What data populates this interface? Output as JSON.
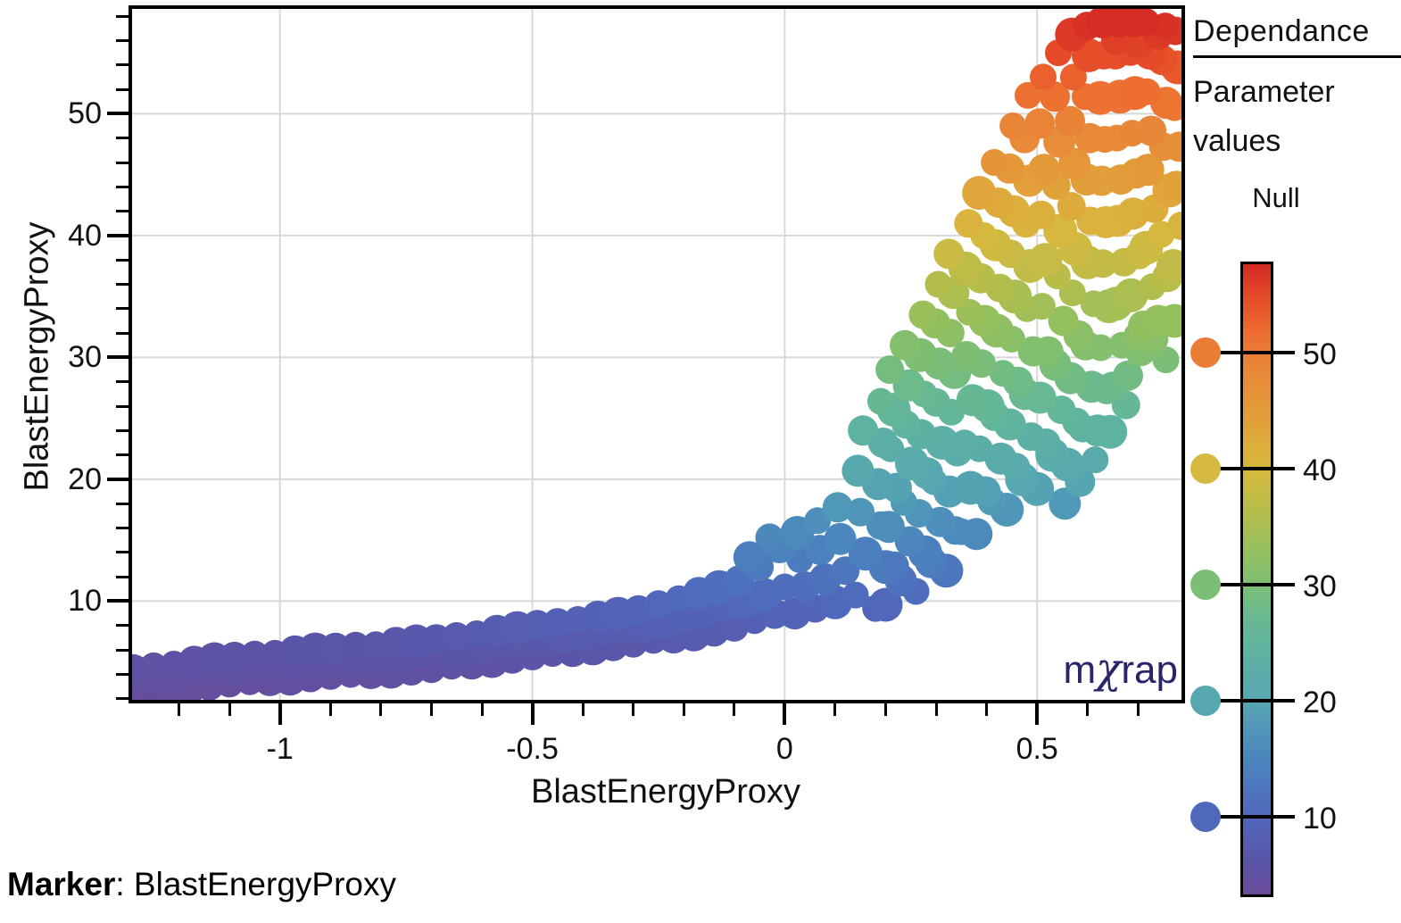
{
  "chart_data": {
    "type": "scatter",
    "title": "",
    "xlabel": "BlastEnergyProxy",
    "ylabel": "BlastEnergyProxy",
    "xlim": [
      -1.293,
      0.786
    ],
    "ylim": [
      1.9,
      58.6
    ],
    "grid": true,
    "grid_color": "#d8d8d8",
    "x_tick_values": [
      -1,
      -0.5,
      0,
      0.5
    ],
    "x_tick_labels": [
      "-1",
      "-0.5",
      "0",
      "0.5"
    ],
    "x_minor_step": 0.1,
    "x_minor_range": [
      -1.2,
      0.7
    ],
    "y_tick_values": [
      10,
      20,
      30,
      40,
      50
    ],
    "y_tick_labels": [
      "10",
      "20",
      "30",
      "40",
      "50"
    ],
    "y_minor_step": 2,
    "y_minor_range": [
      2,
      58
    ],
    "color_by": "y",
    "marker_radius": 17,
    "colormap": [
      [
        2,
        "#6a4b9a"
      ],
      [
        6,
        "#5a55a8"
      ],
      [
        10,
        "#5068bc"
      ],
      [
        14,
        "#4b80be"
      ],
      [
        17,
        "#4e93ba"
      ],
      [
        20,
        "#57a7b1"
      ],
      [
        24,
        "#5db2a2"
      ],
      [
        27,
        "#68b992"
      ],
      [
        30,
        "#7cbe74"
      ],
      [
        33,
        "#95c05e"
      ],
      [
        36,
        "#b3bd4b"
      ],
      [
        40,
        "#d6b93f"
      ],
      [
        43,
        "#dfa83b"
      ],
      [
        46,
        "#e59539"
      ],
      [
        49,
        "#e98537"
      ],
      [
        52,
        "#ed6c2f"
      ],
      [
        55,
        "#e54b29"
      ],
      [
        58,
        "#d32823"
      ]
    ],
    "points": [
      [
        -1.3,
        2.3
      ],
      [
        -1.28,
        3.5
      ],
      [
        -1.29,
        4.4
      ],
      [
        -1.26,
        2.55
      ],
      [
        -1.24,
        3.65
      ],
      [
        -1.25,
        4.62
      ],
      [
        -1.22,
        2.72
      ],
      [
        -1.2,
        3.74
      ],
      [
        -1.21,
        4.83
      ],
      [
        -1.18,
        2.92
      ],
      [
        -1.16,
        4.02
      ],
      [
        -1.17,
        5.02
      ],
      [
        -1.14,
        3.08
      ],
      [
        -1.12,
        4.21
      ],
      [
        -1.13,
        5.23
      ],
      [
        -1.1,
        3.27
      ],
      [
        -1.08,
        4.3
      ],
      [
        -1.09,
        5.42
      ],
      [
        -1.06,
        3.38
      ],
      [
        -1.04,
        4.52
      ],
      [
        -1.05,
        5.58
      ],
      [
        -1.02,
        3.52
      ],
      [
        -1.0,
        4.66
      ],
      [
        -1.01,
        5.72
      ],
      [
        -0.98,
        3.64
      ],
      [
        -0.96,
        4.8
      ],
      [
        -0.97,
        5.88
      ],
      [
        -0.94,
        3.77
      ],
      [
        -0.92,
        4.94
      ],
      [
        -0.93,
        6.03
      ],
      [
        -0.9,
        3.89
      ],
      [
        -0.88,
        5.07
      ],
      [
        -0.89,
        6.17
      ],
      [
        -0.86,
        3.99
      ],
      [
        -0.84,
        5.19
      ],
      [
        -0.85,
        6.31
      ],
      [
        -0.82,
        4.1
      ],
      [
        -0.8,
        5.31
      ],
      [
        -0.81,
        6.43
      ],
      [
        -0.78,
        4.21
      ],
      [
        -0.76,
        5.43
      ],
      [
        -0.77,
        6.57
      ],
      [
        -0.74,
        4.32
      ],
      [
        -0.72,
        5.55
      ],
      [
        -0.73,
        6.7
      ],
      [
        -0.7,
        4.45
      ],
      [
        -0.68,
        5.7
      ],
      [
        -0.69,
        6.87
      ],
      [
        -0.66,
        4.66
      ],
      [
        -0.64,
        5.92
      ],
      [
        -0.65,
        7.1
      ],
      [
        -0.62,
        4.88
      ],
      [
        -0.6,
        6.14
      ],
      [
        -0.61,
        7.32
      ],
      [
        -0.58,
        5.08
      ],
      [
        -0.56,
        6.36
      ],
      [
        -0.57,
        7.56
      ],
      [
        -0.54,
        5.29
      ],
      [
        -0.52,
        6.58
      ],
      [
        -0.53,
        7.79
      ],
      [
        -0.5,
        5.49
      ],
      [
        -0.48,
        6.8
      ],
      [
        -0.49,
        8.03
      ],
      [
        -0.46,
        5.71
      ],
      [
        -0.44,
        7.02
      ],
      [
        -0.45,
        8.26
      ],
      [
        -0.42,
        5.91
      ],
      [
        -0.4,
        7.24
      ],
      [
        -0.41,
        8.49
      ],
      [
        -0.38,
        6.12
      ],
      [
        -0.36,
        7.46
      ],
      [
        -0.37,
        8.72
      ],
      [
        -0.34,
        6.32
      ],
      [
        -0.32,
        7.68
      ],
      [
        -0.33,
        8.96
      ],
      [
        -0.3,
        6.54
      ],
      [
        -0.28,
        7.93
      ],
      [
        -0.29,
        9.24
      ],
      [
        -0.26,
        6.78
      ],
      [
        -0.24,
        8.29
      ],
      [
        -0.25,
        9.72
      ],
      [
        -0.22,
        7.02
      ],
      [
        -0.2,
        8.65
      ],
      [
        -0.21,
        10.2
      ],
      [
        -0.18,
        7.27
      ],
      [
        -0.16,
        9.01
      ],
      [
        -0.17,
        10.67
      ],
      [
        -0.14,
        7.51
      ],
      [
        -0.12,
        9.37
      ],
      [
        -0.13,
        11.15
      ],
      [
        -0.1,
        7.84
      ],
      [
        -0.08,
        9.81
      ],
      [
        -0.09,
        11.7
      ],
      [
        -0.06,
        8.4
      ],
      [
        -0.04,
        10.49
      ],
      [
        -0.05,
        12.8
      ],
      [
        -0.07,
        13.6
      ],
      [
        -0.02,
        8.96
      ],
      [
        0.0,
        11.17
      ],
      [
        -0.01,
        14.5
      ],
      [
        -0.03,
        15.2
      ],
      [
        0.02,
        9.0
      ],
      [
        0.04,
        11.2
      ],
      [
        0.03,
        13.4
      ],
      [
        0.025,
        15.6
      ],
      [
        0.06,
        9.4
      ],
      [
        0.08,
        11.8
      ],
      [
        0.07,
        14.2
      ],
      [
        0.065,
        16.6
      ],
      [
        0.1,
        9.9
      ],
      [
        0.12,
        12.5
      ],
      [
        0.11,
        15.1
      ],
      [
        0.105,
        17.7
      ],
      [
        0.14,
        10.5
      ],
      [
        0.16,
        13.9
      ],
      [
        0.15,
        17.3
      ],
      [
        0.145,
        20.7
      ],
      [
        0.155,
        24.0
      ],
      [
        0.18,
        9.4
      ],
      [
        0.2,
        12.8
      ],
      [
        0.19,
        16.2
      ],
      [
        0.185,
        19.6
      ],
      [
        0.195,
        23.0
      ],
      [
        0.19,
        26.4
      ],
      [
        0.2,
        9.7
      ],
      [
        0.218,
        12.9
      ],
      [
        0.206,
        16.1
      ],
      [
        0.222,
        19.3
      ],
      [
        0.21,
        22.5
      ],
      [
        0.216,
        25.7
      ],
      [
        0.208,
        29.0
      ],
      [
        0.23,
        11.7
      ],
      [
        0.248,
        14.9
      ],
      [
        0.236,
        18.1
      ],
      [
        0.252,
        21.3
      ],
      [
        0.24,
        24.5
      ],
      [
        0.246,
        27.7
      ],
      [
        0.238,
        31.0
      ],
      [
        0.26,
        10.8
      ],
      [
        0.278,
        14.0
      ],
      [
        0.266,
        17.2
      ],
      [
        0.282,
        20.5
      ],
      [
        0.27,
        23.7
      ],
      [
        0.276,
        27.0
      ],
      [
        0.268,
        30.2
      ],
      [
        0.274,
        33.5
      ],
      [
        0.29,
        13.2
      ],
      [
        0.308,
        16.5
      ],
      [
        0.296,
        19.8
      ],
      [
        0.312,
        23.0
      ],
      [
        0.3,
        26.3
      ],
      [
        0.306,
        29.5
      ],
      [
        0.298,
        32.8
      ],
      [
        0.304,
        36.0
      ],
      [
        0.32,
        12.5
      ],
      [
        0.338,
        15.8
      ],
      [
        0.326,
        19.0
      ],
      [
        0.342,
        22.3
      ],
      [
        0.33,
        25.5
      ],
      [
        0.336,
        28.8
      ],
      [
        0.328,
        32.0
      ],
      [
        0.334,
        35.3
      ],
      [
        0.325,
        38.5
      ],
      [
        0.35,
        15.7
      ],
      [
        0.368,
        19.3
      ],
      [
        0.356,
        22.9
      ],
      [
        0.372,
        26.5
      ],
      [
        0.36,
        30.1
      ],
      [
        0.366,
        33.7
      ],
      [
        0.358,
        37.3
      ],
      [
        0.364,
        41.0
      ],
      [
        0.38,
        15.5
      ],
      [
        0.398,
        19.0
      ],
      [
        0.386,
        22.5
      ],
      [
        0.402,
        26.0
      ],
      [
        0.39,
        29.5
      ],
      [
        0.396,
        33.0
      ],
      [
        0.388,
        36.5
      ],
      [
        0.394,
        40.0
      ],
      [
        0.385,
        43.5
      ],
      [
        0.41,
        18.2
      ],
      [
        0.428,
        21.7
      ],
      [
        0.416,
        25.2
      ],
      [
        0.432,
        28.7
      ],
      [
        0.42,
        32.2
      ],
      [
        0.426,
        35.7
      ],
      [
        0.418,
        39.2
      ],
      [
        0.424,
        42.7
      ],
      [
        0.415,
        46.0
      ],
      [
        0.44,
        17.5
      ],
      [
        0.458,
        21.0
      ],
      [
        0.446,
        24.5
      ],
      [
        0.462,
        28.0
      ],
      [
        0.45,
        31.5
      ],
      [
        0.456,
        35.0
      ],
      [
        0.448,
        38.5
      ],
      [
        0.454,
        42.0
      ],
      [
        0.445,
        45.5
      ],
      [
        0.452,
        49.0
      ],
      [
        0.47,
        20.0
      ],
      [
        0.488,
        23.5
      ],
      [
        0.476,
        27.0
      ],
      [
        0.492,
        30.5
      ],
      [
        0.48,
        34.0
      ],
      [
        0.486,
        37.5
      ],
      [
        0.478,
        41.0
      ],
      [
        0.484,
        44.5
      ],
      [
        0.475,
        48.0
      ],
      [
        0.482,
        51.5
      ],
      [
        0.5,
        19.2
      ],
      [
        0.518,
        23.0
      ],
      [
        0.506,
        26.7
      ],
      [
        0.522,
        30.5
      ],
      [
        0.51,
        34.2
      ],
      [
        0.516,
        38.0
      ],
      [
        0.508,
        41.7
      ],
      [
        0.514,
        45.4
      ],
      [
        0.505,
        49.2
      ],
      [
        0.512,
        53.0
      ],
      [
        0.53,
        22.0
      ],
      [
        0.548,
        25.7
      ],
      [
        0.536,
        29.4
      ],
      [
        0.552,
        33.0
      ],
      [
        0.54,
        36.7
      ],
      [
        0.546,
        40.4
      ],
      [
        0.538,
        44.1
      ],
      [
        0.544,
        47.7
      ],
      [
        0.535,
        51.4
      ],
      [
        0.542,
        55.0
      ],
      [
        0.56,
        21.2
      ],
      [
        0.578,
        24.7
      ],
      [
        0.566,
        28.3
      ],
      [
        0.582,
        31.8
      ],
      [
        0.57,
        35.3
      ],
      [
        0.576,
        38.9
      ],
      [
        0.568,
        42.4
      ],
      [
        0.574,
        45.9
      ],
      [
        0.565,
        49.4
      ],
      [
        0.572,
        53.0
      ],
      [
        0.569,
        56.5
      ],
      [
        0.59,
        24.2
      ],
      [
        0.608,
        27.6
      ],
      [
        0.596,
        31.0
      ],
      [
        0.612,
        34.4
      ],
      [
        0.6,
        37.8
      ],
      [
        0.606,
        41.2
      ],
      [
        0.598,
        44.6
      ],
      [
        0.604,
        48.0
      ],
      [
        0.595,
        51.4
      ],
      [
        0.602,
        54.8
      ],
      [
        0.599,
        57.2
      ],
      [
        0.62,
        24.0
      ],
      [
        0.638,
        27.4
      ],
      [
        0.626,
        30.8
      ],
      [
        0.642,
        34.2
      ],
      [
        0.63,
        37.7
      ],
      [
        0.636,
        41.1
      ],
      [
        0.628,
        44.5
      ],
      [
        0.634,
        47.9
      ],
      [
        0.625,
        51.3
      ],
      [
        0.632,
        54.8
      ],
      [
        0.629,
        57.5
      ],
      [
        0.65,
        27.6
      ],
      [
        0.668,
        31.0
      ],
      [
        0.656,
        34.4
      ],
      [
        0.672,
        37.8
      ],
      [
        0.66,
        41.2
      ],
      [
        0.666,
        44.6
      ],
      [
        0.658,
        48.0
      ],
      [
        0.664,
        51.4
      ],
      [
        0.655,
        54.8
      ],
      [
        0.662,
        57.6
      ],
      [
        0.68,
        28.5
      ],
      [
        0.698,
        31.8
      ],
      [
        0.686,
        35.1
      ],
      [
        0.702,
        38.4
      ],
      [
        0.69,
        41.8
      ],
      [
        0.696,
        45.1
      ],
      [
        0.688,
        48.4
      ],
      [
        0.694,
        51.7
      ],
      [
        0.685,
        55.1
      ],
      [
        0.692,
        57.6
      ],
      [
        0.71,
        32.6
      ],
      [
        0.728,
        35.8
      ],
      [
        0.716,
        39.0
      ],
      [
        0.732,
        42.2
      ],
      [
        0.72,
        45.4
      ],
      [
        0.726,
        48.6
      ],
      [
        0.718,
        51.8
      ],
      [
        0.724,
        55.0
      ],
      [
        0.715,
        57.5
      ],
      [
        0.74,
        33.0
      ],
      [
        0.758,
        36.6
      ],
      [
        0.746,
        40.1
      ],
      [
        0.762,
        43.7
      ],
      [
        0.75,
        47.3
      ],
      [
        0.756,
        50.9
      ],
      [
        0.748,
        54.4
      ],
      [
        0.754,
        57.2
      ],
      [
        0.77,
        37.5
      ],
      [
        0.786,
        40.8
      ],
      [
        0.776,
        44.0
      ],
      [
        0.782,
        47.3
      ],
      [
        0.772,
        50.5
      ],
      [
        0.778,
        53.8
      ],
      [
        0.774,
        56.8
      ],
      [
        -1.31,
        1.9
      ],
      [
        -1.27,
        1.7
      ],
      [
        -1.23,
        2.1
      ],
      [
        -1.32,
        3.2
      ],
      [
        -1.19,
        1.9
      ],
      [
        0.555,
        18.0
      ],
      [
        0.585,
        19.8
      ],
      [
        0.615,
        21.6
      ],
      [
        0.645,
        23.9
      ],
      [
        0.676,
        26.1
      ],
      [
        0.705,
        30.6
      ],
      [
        0.73,
        31.5
      ],
      [
        0.755,
        29.8
      ],
      [
        0.772,
        33.0
      ],
      [
        0.655,
        56.0
      ],
      [
        0.7,
        55.8
      ],
      [
        0.74,
        56.5
      ]
    ]
  },
  "legend": {
    "title": "Dependance",
    "subtitle": "Parameter values",
    "null_label": "Null",
    "colorbar": {
      "min": 3.1,
      "max": 57.85,
      "tick_values": [
        50,
        40,
        30,
        20,
        10
      ],
      "tick_labels": [
        "50",
        "40",
        "30",
        "20",
        "10"
      ]
    }
  },
  "watermark": {
    "m": "m",
    "chi": "χ",
    "rap": "rap",
    "color": "#29256a"
  },
  "footer": {
    "label": "Marker",
    "separator": ": ",
    "value": "BlastEnergyProxy"
  }
}
